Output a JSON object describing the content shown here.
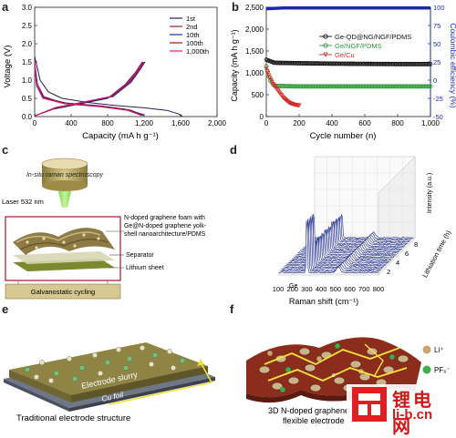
{
  "panels": {
    "a": "a",
    "b": "b",
    "c": "c",
    "d": "d",
    "e": "e",
    "f": "f"
  },
  "chart_data": [
    {
      "type": "line",
      "title": "",
      "xlabel": "Capacity (mA h g⁻¹)",
      "ylabel": "Voltage (V)",
      "xlim": [
        0,
        2000
      ],
      "ylim": [
        0,
        3.0
      ],
      "xticks": [
        "0",
        "400",
        "800",
        "1,200",
        "1,600",
        "2,000"
      ],
      "yticks": [
        "0.0",
        "0.5",
        "1.0",
        "1.5",
        "2.0",
        "2.5",
        "3.0"
      ],
      "legend_position": "top-right",
      "series": [
        {
          "name": "1st",
          "color": "#2b1d4e",
          "discharge": [
            [
              0,
              1.65
            ],
            [
              60,
              1.0
            ],
            [
              150,
              0.68
            ],
            [
              300,
              0.5
            ],
            [
              600,
              0.38
            ],
            [
              900,
              0.3
            ],
            [
              1200,
              0.24
            ],
            [
              1450,
              0.17
            ],
            [
              1580,
              0.07
            ],
            [
              1620,
              0.01
            ]
          ],
          "charge": [
            [
              0,
              0.02
            ],
            [
              200,
              0.2
            ],
            [
              500,
              0.35
            ],
            [
              800,
              0.5
            ],
            [
              1000,
              0.9
            ],
            [
              1100,
              1.2
            ],
            [
              1180,
              1.5
            ]
          ]
        },
        {
          "name": "2nd",
          "color": "#8a2060",
          "discharge": [
            [
              0,
              1.5
            ],
            [
              30,
              0.9
            ],
            [
              100,
              0.55
            ],
            [
              300,
              0.38
            ],
            [
              700,
              0.3
            ],
            [
              1000,
              0.2
            ],
            [
              1200,
              0.05
            ]
          ],
          "charge": [
            [
              0,
              0.02
            ],
            [
              250,
              0.25
            ],
            [
              550,
              0.4
            ],
            [
              850,
              0.55
            ],
            [
              1050,
              0.95
            ],
            [
              1150,
              1.3
            ],
            [
              1200,
              1.5
            ]
          ]
        },
        {
          "name": "10th",
          "color": "#1f2fa0",
          "discharge": [
            [
              0,
              1.5
            ],
            [
              25,
              0.85
            ],
            [
              100,
              0.52
            ],
            [
              350,
              0.37
            ],
            [
              750,
              0.28
            ],
            [
              1050,
              0.18
            ],
            [
              1200,
              0.03
            ]
          ],
          "charge": [
            [
              0,
              0.02
            ],
            [
              240,
              0.25
            ],
            [
              560,
              0.4
            ],
            [
              860,
              0.55
            ],
            [
              1060,
              0.95
            ],
            [
              1160,
              1.3
            ],
            [
              1210,
              1.5
            ]
          ]
        },
        {
          "name": "100th",
          "color": "#a01010",
          "discharge": [
            [
              0,
              1.5
            ],
            [
              20,
              0.85
            ],
            [
              90,
              0.52
            ],
            [
              330,
              0.37
            ],
            [
              720,
              0.28
            ],
            [
              1030,
              0.18
            ],
            [
              1180,
              0.03
            ]
          ],
          "charge": [
            [
              0,
              0.02
            ],
            [
              230,
              0.25
            ],
            [
              540,
              0.4
            ],
            [
              840,
              0.55
            ],
            [
              1040,
              0.95
            ],
            [
              1140,
              1.3
            ],
            [
              1190,
              1.5
            ]
          ]
        },
        {
          "name": "1,000th",
          "color": "#d51a78",
          "discharge": [
            [
              0,
              1.5
            ],
            [
              20,
              0.85
            ],
            [
              90,
              0.5
            ],
            [
              330,
              0.35
            ],
            [
              720,
              0.27
            ],
            [
              1020,
              0.17
            ],
            [
              1170,
              0.03
            ]
          ],
          "charge": [
            [
              0,
              0.02
            ],
            [
              230,
              0.24
            ],
            [
              540,
              0.4
            ],
            [
              830,
              0.55
            ],
            [
              1030,
              0.95
            ],
            [
              1130,
              1.3
            ],
            [
              1180,
              1.5
            ]
          ]
        }
      ]
    },
    {
      "type": "scatter",
      "title": "",
      "xlabel": "Cycle number (n)",
      "ylabel": "Capacity (mA h g⁻¹)",
      "ylabel_right": "Coulombic efficiency (%)",
      "xlim": [
        0,
        1000
      ],
      "ylim": [
        0,
        2500
      ],
      "ylim_right": [
        -50,
        100
      ],
      "xticks": [
        "0",
        "200",
        "400",
        "600",
        "800",
        "1,000"
      ],
      "yticks": [
        "0",
        "500",
        "1,000",
        "1,500",
        "2,000",
        "2,500"
      ],
      "yticks_right": [
        "-50",
        "-25",
        "0",
        "25",
        "50",
        "75",
        "100"
      ],
      "legend_position": "center",
      "series": [
        {
          "name": "Ge-QD@NG/NGF/PDMS",
          "color": "#111111",
          "capacity": [
            [
              0,
              1300
            ],
            [
              50,
              1230
            ],
            [
              200,
              1220
            ],
            [
              400,
              1210
            ],
            [
              600,
              1205
            ],
            [
              800,
              1200
            ],
            [
              1000,
              1200
            ]
          ]
        },
        {
          "name": "Ge/NGF/PDMS",
          "color": "#2e9a3a",
          "capacity": [
            [
              0,
              1150
            ],
            [
              20,
              850
            ],
            [
              50,
              700
            ],
            [
              200,
              690
            ],
            [
              400,
              690
            ],
            [
              600,
              690
            ],
            [
              800,
              690
            ],
            [
              1000,
              690
            ]
          ]
        },
        {
          "name": "Ge/Cu",
          "color": "#d42a2a",
          "capacity": [
            [
              0,
              1100
            ],
            [
              20,
              900
            ],
            [
              40,
              750
            ],
            [
              60,
              650
            ],
            [
              80,
              550
            ],
            [
              100,
              450
            ],
            [
              120,
              380
            ],
            [
              140,
              320
            ],
            [
              160,
              290
            ],
            [
              180,
              270
            ],
            [
              200,
              260
            ]
          ]
        },
        {
          "name": "Coulombic efficiency",
          "color": "#1a2ab0",
          "efficiency": [
            [
              0,
              98
            ],
            [
              100,
              99
            ],
            [
              300,
              99
            ],
            [
              500,
              99
            ],
            [
              700,
              99
            ],
            [
              900,
              99
            ],
            [
              1000,
              99
            ]
          ]
        }
      ]
    },
    {
      "type": "line",
      "title": "",
      "xlabel": "Raman shift (cm⁻¹)",
      "ylabel": "Intensity (a.u.)",
      "zlabel": "Lithiation time (h)",
      "xlim": [
        100,
        800
      ],
      "xticks": [
        "100",
        "200",
        "300",
        "400",
        "500",
        "600",
        "700",
        "800"
      ],
      "zticks": [
        "2",
        "4",
        "6",
        "8"
      ],
      "annotation": "Ge",
      "peak_position": 300
    }
  ],
  "panel_c": {
    "top_label": "In-situ raman spectroscopy",
    "laser_label": "Laser 532 nm",
    "foam_label": "N-doped graphene foam with Ge@N-doped graphene yolk-shell nanoarchitecture/PDMS",
    "separator_label": "Separator",
    "lithium_label": "Lithium sheet",
    "bottom_label": "Galvanostatic cycling"
  },
  "panel_e": {
    "slurry_label": "Electrode slurry",
    "foil_label": "Cu foil",
    "e_symbol": "e⁻",
    "caption": "Traditional electrode structure"
  },
  "panel_f": {
    "li_label": "Li⁺",
    "pf6_label": "PF₆⁻",
    "e_symbol": "e⁻",
    "caption": "3D N-doped graphene foam flexible electrode"
  },
  "watermark": {
    "cn": "锂电网",
    "en": "li-b.cn"
  }
}
